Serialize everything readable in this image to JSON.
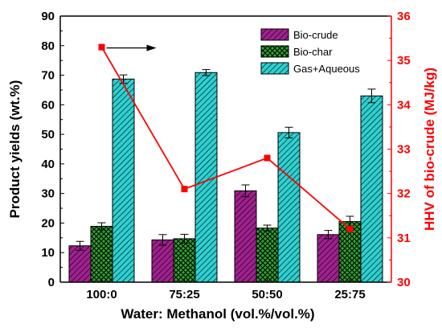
{
  "chart_data": {
    "type": "bar",
    "categories": [
      "100:0",
      "75:25",
      "50:50",
      "25:75"
    ],
    "xlabel": "Water: Methanol (vol.%/vol.%)",
    "ylabel": "Product yields (wt.%)",
    "ylim": [
      0,
      90
    ],
    "yticks": [
      0,
      10,
      20,
      30,
      40,
      50,
      60,
      70,
      80,
      90
    ],
    "series": [
      {
        "name": "Bio-crude",
        "values": [
          12.3,
          14.3,
          30.9,
          16.1
        ],
        "errors": [
          1.5,
          1.8,
          2.0,
          1.4
        ],
        "color": "#a0208f",
        "hatch": "diagonal"
      },
      {
        "name": "Bio-char",
        "values": [
          18.9,
          14.7,
          18.3,
          20.5
        ],
        "errors": [
          1.2,
          1.5,
          1.0,
          1.8
        ],
        "color": "#2ea02e",
        "hatch": "crosshatch"
      },
      {
        "name": "Gas+Aqueous",
        "values": [
          68.7,
          70.9,
          50.6,
          63.0
        ],
        "errors": [
          1.4,
          1.0,
          1.8,
          2.3
        ],
        "color": "#2ed0d0",
        "hatch": "diagonal"
      }
    ],
    "secondary": {
      "type": "line",
      "ylabel": "HHV of bio-crude (MJ/kg)",
      "ylim": [
        30,
        36
      ],
      "yticks": [
        30,
        31,
        32,
        33,
        34,
        35,
        36
      ],
      "values": [
        35.3,
        32.1,
        32.8,
        31.2
      ],
      "color": "#ff0000"
    },
    "legend_position": "top-right",
    "annotation": "arrow pointing right toward secondary axis"
  }
}
